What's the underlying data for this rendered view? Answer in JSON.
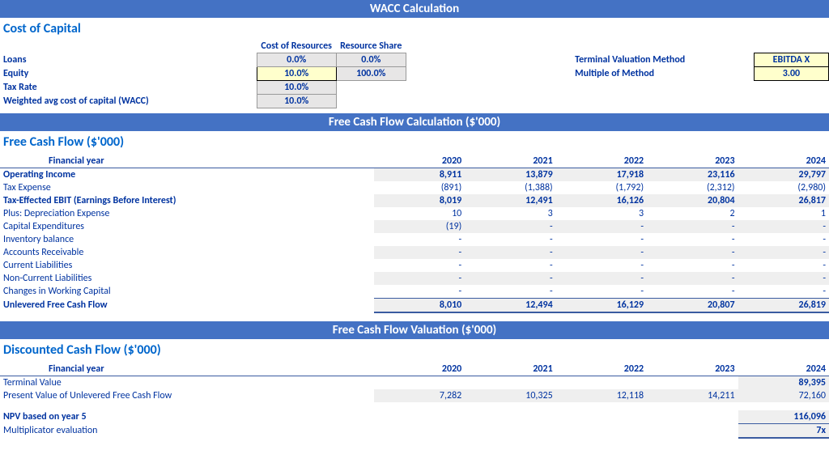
{
  "headers": {
    "wacc": "WACC Calculation",
    "fcf_calc": "Free Cash Flow Calculation ($'000)",
    "fcf_val": "Free Cash Flow Valuation ($'000)"
  },
  "cost_of_capital": {
    "title": "Cost of Capital",
    "col1": "Cost of Resources",
    "col2": "Resource Share",
    "rows": {
      "loans": {
        "label": "Loans",
        "v1": "0.0%",
        "v2": "0.0%"
      },
      "equity": {
        "label": "Equity",
        "v1": "10.0%",
        "v2": "100.0%"
      },
      "tax": {
        "label": "Tax Rate",
        "v1": "10.0%"
      },
      "wacc": {
        "label": "Weighted avg cost of capital (WACC)",
        "v1": "10.0%"
      }
    },
    "terminal": {
      "method_label": "Terminal Valuation Method",
      "method_value": "EBITDA X",
      "multiple_label": "Multiple of Method",
      "multiple_value": "3.00"
    }
  },
  "fcf": {
    "title": "Free Cash Flow ($'000)",
    "year_label": "Financial year",
    "years": [
      "2020",
      "2021",
      "2022",
      "2023",
      "2024"
    ],
    "rows": [
      {
        "label": "Operating Income",
        "style": "bold",
        "indent": 0,
        "vals": [
          "8,911",
          "13,879",
          "17,918",
          "23,116",
          "29,797"
        ]
      },
      {
        "label": "Tax Expense",
        "style": "normal",
        "indent": 1,
        "vals": [
          "(891)",
          "(1,388)",
          "(1,792)",
          "(2,312)",
          "(2,980)"
        ]
      },
      {
        "label": "Tax-Effected EBIT (Earnings Before Interest)",
        "style": "bold",
        "indent": 0,
        "vals": [
          "8,019",
          "12,491",
          "16,126",
          "20,804",
          "26,817"
        ]
      },
      {
        "label": "Plus: Depreciation Expense",
        "style": "normal",
        "indent": 1,
        "vals": [
          "10",
          "3",
          "3",
          "2",
          "1"
        ]
      },
      {
        "label": "Capital Expenditures",
        "style": "normal",
        "indent": 1,
        "vals": [
          "(19)",
          "-",
          "-",
          "-",
          "-"
        ]
      },
      {
        "label": "Inventory balance",
        "style": "normal",
        "indent": 2,
        "vals": [
          "-",
          "-",
          "-",
          "-",
          "-"
        ]
      },
      {
        "label": "Accounts Receivable",
        "style": "normal",
        "indent": 2,
        "vals": [
          "-",
          "-",
          "-",
          "-",
          "-"
        ]
      },
      {
        "label": "Current Liabilities",
        "style": "normal",
        "indent": 2,
        "vals": [
          "-",
          "-",
          "-",
          "-",
          "-"
        ]
      },
      {
        "label": "Non-Current Liabilities",
        "style": "normal",
        "indent": 2,
        "vals": [
          "-",
          "-",
          "-",
          "-",
          "-"
        ]
      },
      {
        "label": "Changes in Working Capital",
        "style": "normal",
        "indent": 1,
        "vals": [
          "-",
          "-",
          "-",
          "-",
          "-"
        ]
      }
    ],
    "total": {
      "label": "Unlevered Free Cash Flow",
      "vals": [
        "8,010",
        "12,494",
        "16,129",
        "20,807",
        "26,819"
      ]
    }
  },
  "dcf": {
    "title": "Discounted Cash Flow ($'000)",
    "year_label": "Financial year",
    "years": [
      "2020",
      "2021",
      "2022",
      "2023",
      "2024"
    ],
    "rows": [
      {
        "label": "Terminal Value",
        "vals": [
          "",
          "",
          "",
          "",
          "89,395"
        ]
      },
      {
        "label": "Present Value of Unlevered Free Cash Flow",
        "vals": [
          "7,282",
          "10,325",
          "12,118",
          "14,211",
          "72,160"
        ]
      }
    ],
    "npv": {
      "label": "NPV based on year 5",
      "val": "116,096"
    },
    "mult": {
      "label": "Multiplicator evaluation",
      "val": "7x"
    }
  },
  "colors": {
    "header_bg": "#4472c4",
    "text": "#0033a0",
    "title": "#0066cc",
    "grey": "#e7e6e6",
    "yellow": "#ffffcc",
    "row_grey": "#efefef"
  }
}
